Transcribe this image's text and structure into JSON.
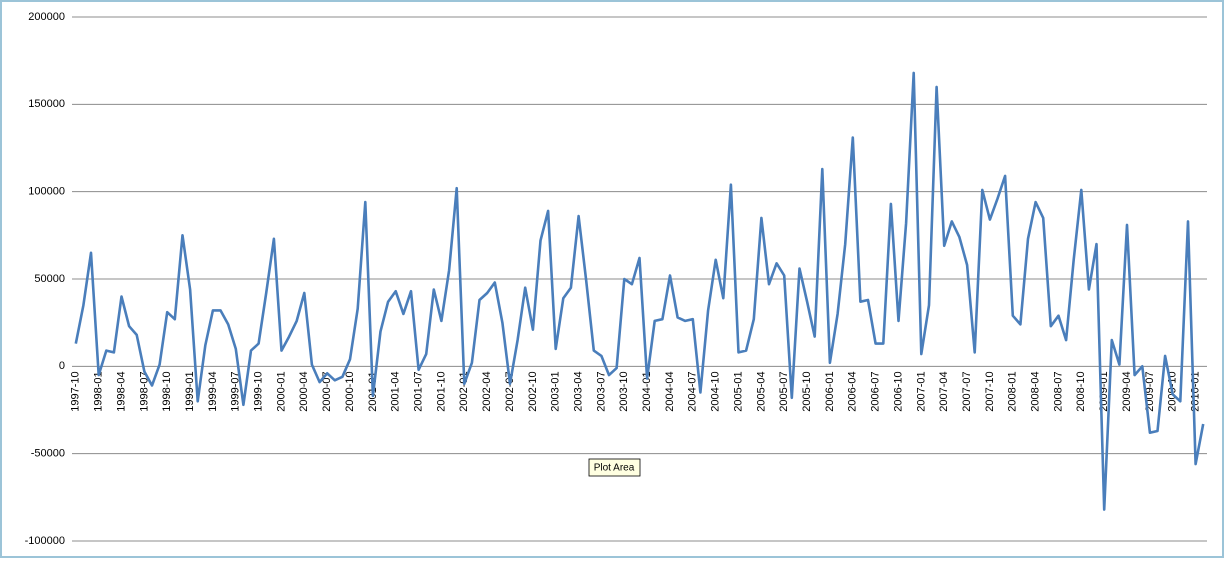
{
  "chart_data": {
    "type": "line",
    "categories": [
      "1997-10",
      null,
      null,
      "1998-01",
      null,
      null,
      "1998-04",
      null,
      null,
      "1998-07",
      null,
      null,
      "1998-10",
      null,
      null,
      "1999-01",
      null,
      null,
      "1999-04",
      null,
      null,
      "1999-07",
      null,
      null,
      "1999-10",
      null,
      null,
      "2000-01",
      null,
      null,
      "2000-04",
      null,
      null,
      "2000-07",
      null,
      null,
      "2000-10",
      null,
      null,
      "2001-01",
      null,
      null,
      "2001-04",
      null,
      null,
      "2001-07",
      null,
      null,
      "2001-10",
      null,
      null,
      "2002-01",
      null,
      null,
      "2002-04",
      null,
      null,
      "2002-07",
      null,
      null,
      "2002-10",
      null,
      null,
      "2003-01",
      null,
      null,
      "2003-04",
      null,
      null,
      "2003-07",
      null,
      null,
      "2003-10",
      null,
      null,
      "2004-01",
      null,
      null,
      "2004-04",
      null,
      null,
      "2004-07",
      null,
      null,
      "2004-10",
      null,
      null,
      "2005-01",
      null,
      null,
      "2005-04",
      null,
      null,
      "2005-07",
      null,
      null,
      "2005-10",
      null,
      null,
      "2006-01",
      null,
      null,
      "2006-04",
      null,
      null,
      "2006-07",
      null,
      null,
      "2006-10",
      null,
      null,
      "2007-01",
      null,
      null,
      "2007-04",
      null,
      null,
      "2007-07",
      null,
      null,
      "2007-10",
      null,
      null,
      "2008-01",
      null,
      null,
      "2008-04",
      null,
      null,
      "2008-07",
      null,
      null,
      "2008-10",
      null,
      null,
      "2009-01",
      null,
      null,
      "2009-04",
      null,
      null,
      "2009-07",
      null,
      null,
      "2009-10",
      null,
      null,
      "2010-01",
      null
    ],
    "values": [
      13000,
      35000,
      65000,
      -5000,
      9000,
      8000,
      40000,
      23000,
      18000,
      -3000,
      -11000,
      1000,
      31000,
      27000,
      75000,
      44000,
      -20000,
      12000,
      32000,
      32000,
      24000,
      10000,
      -22000,
      9000,
      13000,
      42000,
      73000,
      9000,
      17000,
      26000,
      42000,
      1000,
      -9000,
      -4000,
      -8000,
      -6000,
      4000,
      33000,
      94000,
      -17000,
      20000,
      37000,
      43000,
      30000,
      43000,
      -2000,
      7000,
      44000,
      26000,
      55000,
      102000,
      -10000,
      2000,
      38000,
      42000,
      48000,
      25000,
      -10000,
      15000,
      45000,
      21000,
      72000,
      89000,
      10000,
      39000,
      45000,
      86000,
      49000,
      9000,
      6000,
      -5000,
      -1000,
      50000,
      47000,
      62000,
      -7000,
      26000,
      27000,
      52000,
      28000,
      26000,
      27000,
      -15000,
      32000,
      61000,
      39000,
      104000,
      8000,
      9000,
      27000,
      85000,
      47000,
      59000,
      52000,
      -18000,
      56000,
      37000,
      17000,
      113000,
      2000,
      30000,
      70000,
      131000,
      37000,
      38000,
      13000,
      13000,
      93000,
      26000,
      82000,
      168000,
      7000,
      35000,
      160000,
      69000,
      83000,
      74000,
      58000,
      8000,
      101000,
      84000,
      96000,
      109000,
      29000,
      24000,
      73000,
      94000,
      85000,
      23000,
      29000,
      15000,
      61000,
      101000,
      44000,
      70000,
      -82000,
      15000,
      1000,
      81000,
      -5000,
      0,
      -38000,
      -37000,
      6000,
      -16000,
      -20000,
      83000,
      -56000,
      -33000
    ],
    "color": "#4a7ebb",
    "ylim": [
      -100000,
      200000
    ],
    "yticks": [
      -100000,
      -50000,
      0,
      50000,
      100000,
      150000,
      200000
    ],
    "grid": true,
    "tooltip": "Plot Area"
  }
}
